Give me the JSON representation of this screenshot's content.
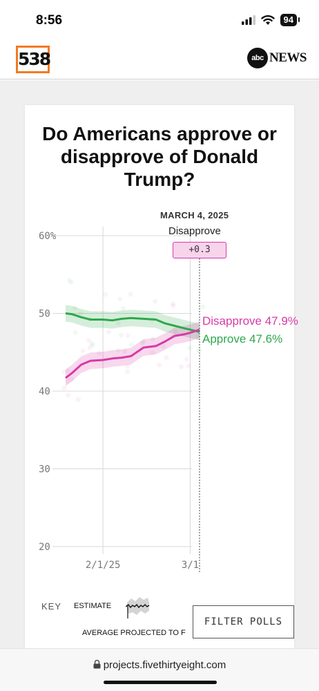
{
  "status_bar": {
    "time": "8:56",
    "battery": "94"
  },
  "header": {
    "logo_text": "538",
    "partner_logo": "abc",
    "partner_text": "NEWS"
  },
  "card": {
    "title": "Do Americans approve or disapprove of Donald Trump?"
  },
  "hover": {
    "date": "MARCH 4, 2025",
    "leader": "Disapprove",
    "margin": "+0.3"
  },
  "end_labels": {
    "disapprove": "Disapprove 47.9%",
    "approve": "Approve 47.6%"
  },
  "key": {
    "label": "KEY",
    "estimate": "ESTIMATE",
    "avg_projected": "AVERAGE PROJECTED TO F"
  },
  "filter_button": "FILTER POLLS",
  "browser": {
    "url": "projects.fivethirtyeight.com"
  },
  "colors": {
    "approve": "#2ea84a",
    "disapprove": "#d63aa7",
    "accent_538": "#f37a20"
  },
  "chart_data": {
    "type": "line",
    "y_tick_labels": [
      "60%",
      "50",
      "40",
      "30",
      "20"
    ],
    "y_ticks": [
      60,
      50,
      40,
      30,
      20
    ],
    "ylim": [
      20,
      60
    ],
    "x_tick_labels": [
      "2/1/25",
      "3/1"
    ],
    "x": [
      "2025-01-20",
      "2025-01-22",
      "2025-01-25",
      "2025-01-28",
      "2025-02-01",
      "2025-02-04",
      "2025-02-07",
      "2025-02-10",
      "2025-02-14",
      "2025-02-18",
      "2025-02-21",
      "2025-02-24",
      "2025-02-27",
      "2025-03-01",
      "2025-03-04"
    ],
    "series": [
      {
        "name": "Approve",
        "values": [
          50.0,
          49.9,
          49.5,
          49.2,
          49.2,
          49.1,
          49.3,
          49.4,
          49.3,
          49.2,
          48.7,
          48.4,
          48.1,
          47.9,
          47.6
        ]
      },
      {
        "name": "Disapprove",
        "values": [
          41.7,
          42.3,
          43.4,
          43.9,
          44.0,
          44.2,
          44.3,
          44.5,
          45.6,
          45.8,
          46.4,
          47.1,
          47.3,
          47.5,
          47.9
        ]
      }
    ],
    "grid": true
  }
}
